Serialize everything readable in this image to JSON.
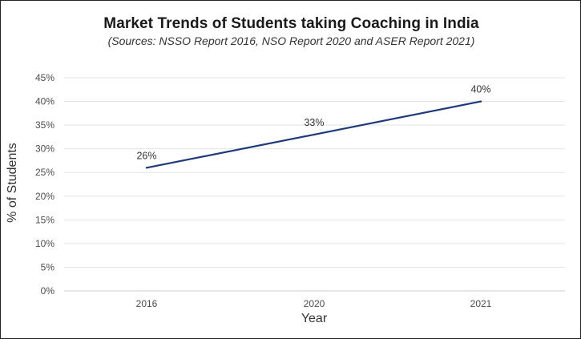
{
  "chart_data": {
    "type": "line",
    "title": "Market Trends of Students taking Coaching in India",
    "subtitle": "(Sources: NSSO Report 2016, NSO Report 2020 and ASER Report 2021)",
    "xlabel": "Year",
    "ylabel": "% of Students",
    "categories": [
      "2016",
      "2020",
      "2021"
    ],
    "series": [
      {
        "name": "% of Students",
        "values": [
          26,
          33,
          40
        ],
        "data_labels": [
          "26%",
          "33%",
          "40%"
        ],
        "color": "#1f3a7a"
      }
    ],
    "ylim": [
      0,
      45
    ],
    "yticks": [
      0,
      5,
      10,
      15,
      20,
      25,
      30,
      35,
      40,
      45
    ],
    "ytick_labels": [
      "0%",
      "5%",
      "10%",
      "15%",
      "20%",
      "25%",
      "30%",
      "35%",
      "40%",
      "45%"
    ],
    "grid": true,
    "legend": "none"
  }
}
